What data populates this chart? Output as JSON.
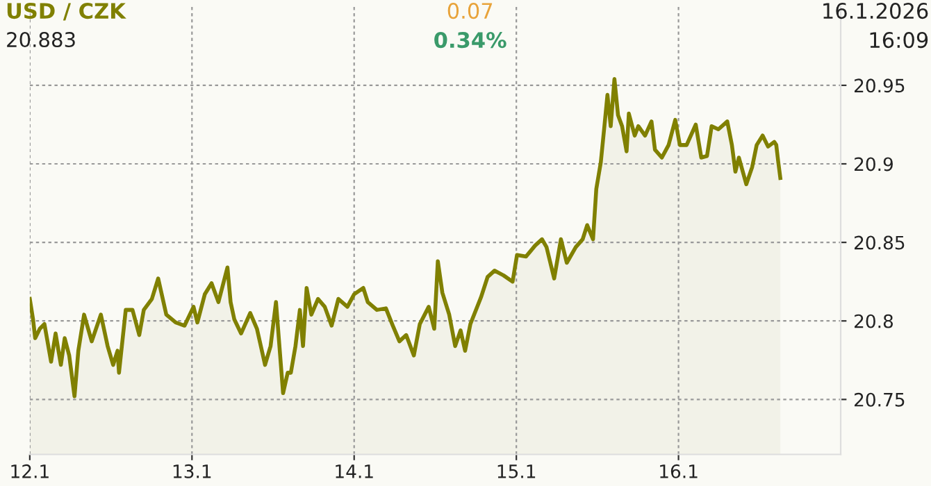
{
  "chart_data": {
    "type": "area",
    "title": "USD / CZK",
    "subtitle": "20.883",
    "annotations": [
      "0.07",
      "0.34%",
      "16.1.2026",
      "16:09"
    ],
    "x": [
      "2026-01-12T00:00",
      "2026-01-12T00:29",
      "2026-01-12T00:48",
      "2026-01-12T01:29",
      "2026-01-12T02:10",
      "2026-01-12T03:09",
      "2026-01-12T03:49",
      "2026-01-12T04:36",
      "2026-01-12T05:10",
      "2026-01-12T05:50",
      "2026-01-12T06:37",
      "2026-01-12T07:11",
      "2026-01-12T08:02",
      "2026-01-12T09:10",
      "2026-01-12T10:31",
      "2026-01-12T11:31",
      "2026-01-12T12:20",
      "2026-01-12T12:59",
      "2026-01-12T13:12",
      "2026-01-12T14:12",
      "2026-01-12T15:12",
      "2026-01-12T16:12",
      "2026-01-12T16:52",
      "2026-01-12T18:04",
      "2026-01-12T19:00",
      "2026-01-12T20:12",
      "2026-01-12T21:35",
      "2026-01-12T22:54",
      "2026-01-13T00:14",
      "2026-01-13T00:48",
      "2026-01-13T01:54",
      "2026-01-13T02:54",
      "2026-01-13T03:55",
      "2026-01-13T05:15",
      "2026-01-13T05:43",
      "2026-01-13T06:16",
      "2026-01-13T07:16",
      "2026-01-13T08:37",
      "2026-01-13T09:37",
      "2026-01-13T10:49",
      "2026-01-13T11:38",
      "2026-01-13T12:26",
      "2026-01-13T13:29",
      "2026-01-13T14:10",
      "2026-01-13T14:38",
      "2026-01-13T15:19",
      "2026-01-13T15:58",
      "2026-01-13T16:26",
      "2026-01-13T16:58",
      "2026-01-13T17:40",
      "2026-01-13T18:39",
      "2026-01-13T19:39",
      "2026-01-13T20:40",
      "2026-01-13T21:40",
      "2026-01-13T23:00",
      "2026-01-14T00:00",
      "2026-01-14T01:21",
      "2026-01-14T02:01",
      "2026-01-14T03:22",
      "2026-01-14T04:42",
      "2026-01-14T05:43",
      "2026-01-14T06:42",
      "2026-01-14T07:42",
      "2026-01-14T08:50",
      "2026-01-14T09:43",
      "2026-01-14T11:02",
      "2026-01-14T11:51",
      "2026-01-14T12:23",
      "2026-01-14T13:03",
      "2026-01-14T14:04",
      "2026-01-14T14:57",
      "2026-01-14T15:45",
      "2026-01-14T16:25",
      "2026-01-14T17:12",
      "2026-01-14T18:46",
      "2026-01-14T19:45",
      "2026-01-14T20:46",
      "2026-01-14T22:06",
      "2026-01-14T23:27",
      "2026-01-15T00:06",
      "2026-01-15T01:26",
      "2026-01-15T02:47",
      "2026-01-15T03:48",
      "2026-01-15T04:28",
      "2026-01-15T05:36",
      "2026-01-15T06:36",
      "2026-01-15T07:28",
      "2026-01-15T08:48",
      "2026-01-15T09:49",
      "2026-01-15T10:29",
      "2026-01-15T11:21",
      "2026-01-15T11:50",
      "2026-01-15T12:30",
      "2026-01-15T13:02",
      "2026-01-15T13:29",
      "2026-01-15T13:58",
      "2026-01-15T14:31",
      "2026-01-15T15:03",
      "2026-01-15T15:39",
      "2026-01-15T16:19",
      "2026-01-15T16:39",
      "2026-01-15T17:31",
      "2026-01-15T18:03",
      "2026-01-15T19:03",
      "2026-01-15T20:00",
      "2026-01-15T20:31",
      "2026-01-15T21:32",
      "2026-01-15T22:32",
      "2026-01-15T23:31",
      "2026-01-16T00:12",
      "2026-01-16T01:12",
      "2026-01-16T02:33",
      "2026-01-16T03:22",
      "2026-01-16T04:13",
      "2026-01-16T04:54",
      "2026-01-16T05:54",
      "2026-01-16T07:13",
      "2026-01-16T07:54",
      "2026-01-16T08:25",
      "2026-01-16T08:56",
      "2026-01-16T10:02",
      "2026-01-16T10:54",
      "2026-01-16T11:34",
      "2026-01-16T12:27",
      "2026-01-16T13:15",
      "2026-01-16T14:10",
      "2026-01-16T14:28",
      "2026-01-16T14:46",
      "2026-01-16T15:04"
    ],
    "values": [
      20.814,
      20.801,
      20.789,
      20.795,
      20.798,
      20.774,
      20.792,
      20.772,
      20.789,
      20.778,
      20.752,
      20.781,
      20.804,
      20.787,
      20.804,
      20.784,
      20.772,
      20.781,
      20.767,
      20.807,
      20.807,
      20.791,
      20.807,
      20.814,
      20.827,
      20.804,
      20.799,
      20.797,
      20.809,
      20.799,
      20.817,
      20.824,
      20.812,
      20.834,
      20.812,
      20.801,
      20.792,
      20.805,
      20.795,
      20.772,
      20.784,
      20.812,
      20.754,
      20.767,
      20.767,
      20.784,
      20.807,
      20.784,
      20.821,
      20.804,
      20.814,
      20.809,
      20.797,
      20.814,
      20.809,
      20.817,
      20.821,
      20.812,
      20.807,
      20.808,
      20.797,
      20.787,
      20.791,
      20.778,
      20.798,
      20.809,
      20.795,
      20.838,
      20.818,
      20.804,
      20.784,
      20.794,
      20.781,
      20.798,
      20.815,
      20.828,
      20.832,
      20.829,
      20.825,
      20.842,
      20.841,
      20.848,
      20.852,
      20.847,
      20.827,
      20.852,
      20.837,
      20.847,
      20.852,
      20.861,
      20.852,
      20.884,
      20.901,
      20.924,
      20.944,
      20.924,
      20.954,
      20.931,
      20.924,
      20.908,
      20.932,
      20.918,
      20.924,
      20.918,
      20.927,
      20.909,
      20.904,
      20.912,
      20.928,
      20.912,
      20.912,
      20.925,
      20.904,
      20.905,
      20.924,
      20.922,
      20.927,
      20.912,
      20.895,
      20.904,
      20.887,
      20.898,
      20.912,
      20.918,
      20.911,
      20.914,
      20.912,
      20.901,
      20.891
    ],
    "color": "#808000",
    "xlim": [
      "2026-01-12",
      "2026-01-17"
    ],
    "xticks": [
      {
        "value": "2026-01-12",
        "label": "12.1"
      },
      {
        "value": "2026-01-13",
        "label": "13.1"
      },
      {
        "value": "2026-01-14",
        "label": "14.1"
      },
      {
        "value": "2026-01-15",
        "label": "15.1"
      },
      {
        "value": "2026-01-16",
        "label": "16.1"
      }
    ],
    "ylim": [
      20.715,
      21.0
    ],
    "yticks": [
      20.75,
      20.8,
      20.85,
      20.9,
      20.95
    ],
    "grid": true,
    "marker": "none",
    "line_style": "solid"
  }
}
